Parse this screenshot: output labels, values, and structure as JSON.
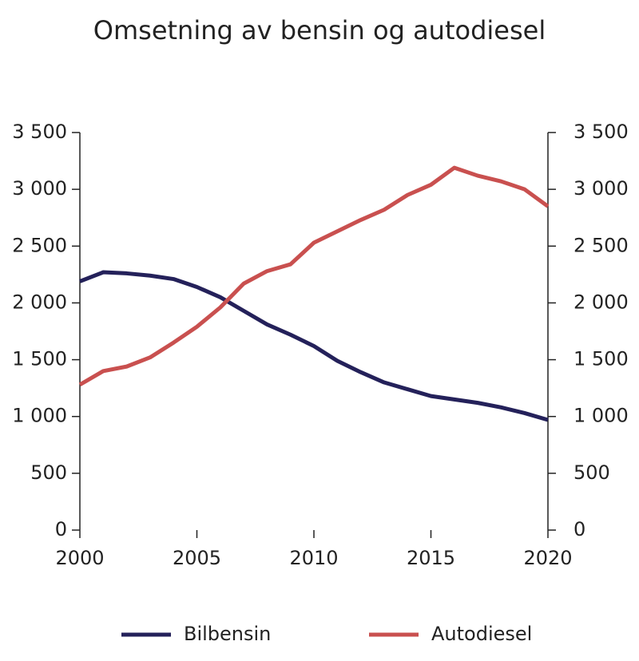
{
  "chart_data": {
    "type": "line",
    "title": "Omsetning av bensin og autodiesel",
    "x": [
      2000,
      2001,
      2002,
      2003,
      2004,
      2005,
      2006,
      2007,
      2008,
      2009,
      2010,
      2011,
      2012,
      2013,
      2014,
      2015,
      2016,
      2017,
      2018,
      2019,
      2020
    ],
    "series": [
      {
        "name": "Bilbensin",
        "color": "#24215a",
        "values": [
          2190,
          2270,
          2260,
          2240,
          2210,
          2140,
          2050,
          1930,
          1810,
          1720,
          1620,
          1490,
          1390,
          1300,
          1240,
          1180,
          1150,
          1120,
          1080,
          1030,
          970
        ]
      },
      {
        "name": "Autodiesel",
        "color": "#c9504f",
        "values": [
          1280,
          1400,
          1440,
          1520,
          1650,
          1790,
          1960,
          2170,
          2280,
          2340,
          2530,
          2630,
          2730,
          2820,
          2950,
          3040,
          3190,
          3120,
          3070,
          3000,
          2850
        ]
      }
    ],
    "xlim": [
      2000,
      2020
    ],
    "xticks": [
      2000,
      2005,
      2010,
      2015,
      2020
    ],
    "ylim": [
      0,
      3500
    ],
    "yticks": [
      0,
      500,
      {
        "value": 1000,
        "label": "1 000"
      },
      {
        "value": 1500,
        "label": "1 500"
      },
      {
        "value": 2000,
        "label": "2 000"
      },
      {
        "value": 2500,
        "label": "2 500"
      },
      {
        "value": 3000,
        "label": "3 000"
      },
      {
        "value": 3500,
        "label": "3 500"
      }
    ],
    "y2lim": [
      0,
      3500
    ],
    "y2ticks": [
      0,
      500,
      {
        "value": 1000,
        "label": "1 000"
      },
      {
        "value": 1500,
        "label": "1 500"
      },
      {
        "value": 2000,
        "label": "2 000"
      },
      {
        "value": 2500,
        "label": "2 500"
      },
      {
        "value": 3000,
        "label": "3 000"
      },
      {
        "value": 3500,
        "label": "3 500"
      }
    ],
    "legend": "bottom"
  }
}
